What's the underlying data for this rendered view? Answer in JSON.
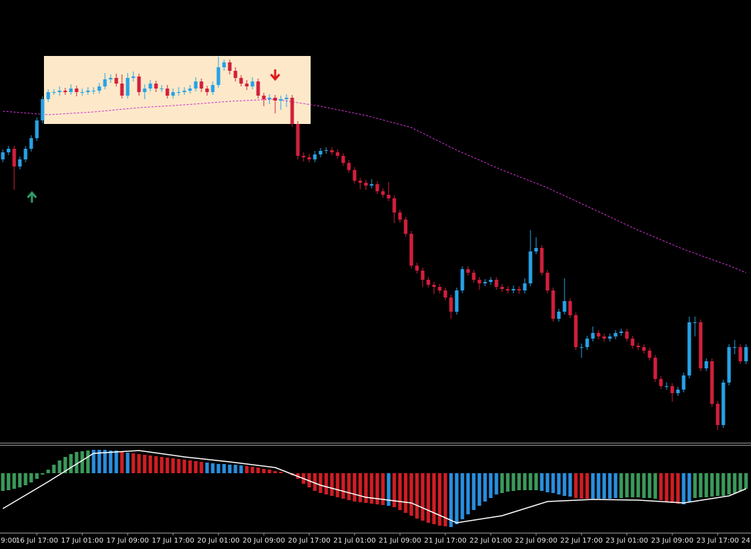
{
  "chart_data": [
    {
      "type": "candlestick",
      "up_color": "#27a2e6",
      "down_color": "#d21f3c",
      "ylim": [
        0,
        625
      ],
      "ohlc": [
        [
          400,
          414,
          396,
          410
        ],
        [
          410,
          419,
          406,
          415
        ],
        [
          415,
          419,
          357,
          390
        ],
        [
          390,
          404,
          386,
          400
        ],
        [
          400,
          419,
          396,
          415
        ],
        [
          415,
          434,
          411,
          430
        ],
        [
          430,
          459,
          426,
          455
        ],
        [
          455,
          489,
          451,
          485
        ],
        [
          485,
          499,
          481,
          495
        ],
        [
          495,
          499,
          491,
          495
        ],
        [
          495,
          503,
          490,
          497
        ],
        [
          497,
          501,
          491,
          495
        ],
        [
          495,
          506,
          491,
          500
        ],
        [
          500,
          504,
          489,
          495
        ],
        [
          495,
          500,
          490,
          495
        ],
        [
          495,
          502,
          491,
          497
        ],
        [
          497,
          502,
          492,
          497
        ],
        [
          497,
          508,
          493,
          503
        ],
        [
          503,
          522,
          499,
          513
        ],
        [
          513,
          520,
          508,
          515
        ],
        [
          515,
          521,
          503,
          507
        ],
        [
          507,
          520,
          486,
          490
        ],
        [
          490,
          522,
          486,
          515
        ],
        [
          515,
          524,
          510,
          517
        ],
        [
          517,
          521,
          490,
          495
        ],
        [
          495,
          506,
          485,
          500
        ],
        [
          500,
          512,
          496,
          507
        ],
        [
          507,
          511,
          495,
          500
        ],
        [
          500,
          505,
          495,
          500
        ],
        [
          500,
          505,
          486,
          490
        ],
        [
          490,
          500,
          486,
          495
        ],
        [
          495,
          502,
          490,
          495
        ],
        [
          495,
          502,
          491,
          497
        ],
        [
          497,
          505,
          493,
          500
        ],
        [
          500,
          516,
          496,
          510
        ],
        [
          510,
          514,
          495,
          500
        ],
        [
          500,
          504,
          490,
          495
        ],
        [
          495,
          510,
          491,
          505
        ],
        [
          505,
          545,
          501,
          530
        ],
        [
          530,
          541,
          525,
          537
        ],
        [
          537,
          541,
          520,
          525
        ],
        [
          525,
          530,
          510,
          515
        ],
        [
          515,
          519,
          503,
          507
        ],
        [
          507,
          512,
          498,
          503
        ],
        [
          503,
          516,
          499,
          510
        ],
        [
          510,
          514,
          486,
          490
        ],
        [
          490,
          494,
          475,
          485
        ],
        [
          485,
          492,
          478,
          487
        ],
        [
          487,
          491,
          465,
          483
        ],
        [
          483,
          490,
          470,
          485
        ],
        [
          485,
          492,
          474,
          487
        ],
        [
          487,
          491,
          446,
          450
        ],
        [
          450,
          454,
          400,
          405
        ],
        [
          405,
          410,
          397,
          403
        ],
        [
          403,
          408,
          396,
          400
        ],
        [
          400,
          412,
          396,
          407
        ],
        [
          407,
          416,
          403,
          412
        ],
        [
          412,
          417,
          408,
          413
        ],
        [
          413,
          417,
          406,
          410
        ],
        [
          410,
          414,
          401,
          405
        ],
        [
          405,
          409,
          391,
          395
        ],
        [
          395,
          399,
          381,
          385
        ],
        [
          385,
          389,
          366,
          370
        ],
        [
          370,
          374,
          358,
          367
        ],
        [
          367,
          371,
          357,
          363
        ],
        [
          363,
          372,
          359,
          365
        ],
        [
          365,
          369,
          351,
          355
        ],
        [
          355,
          359,
          346,
          350
        ],
        [
          350,
          368,
          341,
          345
        ],
        [
          345,
          349,
          310,
          325
        ],
        [
          325,
          329,
          311,
          315
        ],
        [
          315,
          319,
          291,
          295
        ],
        [
          295,
          299,
          246,
          250
        ],
        [
          250,
          254,
          239,
          243
        ],
        [
          243,
          247,
          220,
          230
        ],
        [
          230,
          234,
          219,
          223
        ],
        [
          223,
          227,
          210,
          220
        ],
        [
          220,
          224,
          211,
          215
        ],
        [
          215,
          219,
          201,
          205
        ],
        [
          205,
          209,
          175,
          185
        ],
        [
          185,
          219,
          181,
          215
        ],
        [
          215,
          249,
          211,
          245
        ],
        [
          245,
          249,
          236,
          240
        ],
        [
          240,
          244,
          226,
          230
        ],
        [
          230,
          234,
          216,
          225
        ],
        [
          225,
          231,
          221,
          227
        ],
        [
          227,
          234,
          223,
          230
        ],
        [
          230,
          234,
          216,
          220
        ],
        [
          220,
          224,
          213,
          217
        ],
        [
          217,
          221,
          211,
          215
        ],
        [
          215,
          222,
          211,
          217
        ],
        [
          217,
          221,
          210,
          215
        ],
        [
          215,
          232,
          211,
          225
        ],
        [
          225,
          300,
          221,
          270
        ],
        [
          270,
          290,
          266,
          275
        ],
        [
          275,
          279,
          236,
          240
        ],
        [
          240,
          244,
          211,
          215
        ],
        [
          215,
          219,
          171,
          175
        ],
        [
          175,
          189,
          171,
          185
        ],
        [
          185,
          232,
          181,
          200
        ],
        [
          200,
          204,
          176,
          180
        ],
        [
          180,
          184,
          131,
          135
        ],
        [
          135,
          140,
          120,
          135
        ],
        [
          135,
          151,
          131,
          147
        ],
        [
          147,
          164,
          143,
          155
        ],
        [
          155,
          159,
          146,
          150
        ],
        [
          150,
          154,
          143,
          147
        ],
        [
          147,
          154,
          143,
          150
        ],
        [
          150,
          159,
          146,
          155
        ],
        [
          155,
          161,
          151,
          157
        ],
        [
          157,
          161,
          143,
          147
        ],
        [
          147,
          151,
          133,
          137
        ],
        [
          137,
          141,
          131,
          135
        ],
        [
          135,
          139,
          126,
          130
        ],
        [
          130,
          134,
          116,
          120
        ],
        [
          120,
          124,
          86,
          90
        ],
        [
          90,
          94,
          76,
          80
        ],
        [
          80,
          85,
          75,
          80
        ],
        [
          80,
          84,
          58,
          70
        ],
        [
          70,
          79,
          66,
          75
        ],
        [
          75,
          99,
          71,
          95
        ],
        [
          95,
          178,
          91,
          170
        ],
        [
          170,
          178,
          150,
          170
        ],
        [
          170,
          174,
          101,
          105
        ],
        [
          105,
          119,
          101,
          115
        ],
        [
          115,
          119,
          51,
          55
        ],
        [
          55,
          59,
          18,
          25
        ],
        [
          25,
          89,
          21,
          85
        ],
        [
          85,
          139,
          81,
          135
        ],
        [
          135,
          145,
          125,
          135
        ],
        [
          135,
          139,
          111,
          115
        ],
        [
          115,
          139,
          111,
          135
        ]
      ],
      "ma": {
        "color": "#cc33cc",
        "x": [
          0,
          8,
          16,
          24,
          32,
          40,
          48,
          56,
          64,
          72,
          80,
          88,
          96,
          104,
          112,
          120,
          128,
          131
        ],
        "values": [
          468,
          463,
          467,
          473,
          477,
          482,
          485,
          475,
          462,
          445,
          413,
          385,
          360,
          330,
          300,
          273,
          250,
          240
        ]
      }
    },
    {
      "type": "oscillator",
      "ylim": [
        -84,
        38
      ],
      "values": [
        -25,
        -24,
        -22,
        -20,
        -17,
        -13,
        -8,
        -2,
        5,
        12,
        18,
        23,
        27,
        30,
        31,
        32,
        33,
        33,
        33,
        32,
        32,
        30,
        29,
        28,
        27,
        26,
        25,
        24,
        23,
        22,
        21,
        20,
        19,
        18,
        17,
        16,
        15,
        14,
        13,
        13,
        12,
        12,
        11,
        10,
        9,
        8,
        6,
        5,
        3,
        2,
        0,
        -3,
        -8,
        -15,
        -20,
        -25,
        -28,
        -30,
        -32,
        -34,
        -36,
        -38,
        -40,
        -41,
        -42,
        -43,
        -44,
        -45,
        -46,
        -48,
        -52,
        -56,
        -60,
        -64,
        -67,
        -70,
        -72,
        -74,
        -75,
        -76,
        -72,
        -65,
        -58,
        -52,
        -46,
        -40,
        -35,
        -30,
        -28,
        -26,
        -25,
        -24,
        -24,
        -24,
        -24,
        -25,
        -27,
        -28,
        -30,
        -32,
        -33,
        -35,
        -36,
        -36,
        -36,
        -36,
        -36,
        -36,
        -35,
        -35,
        -34,
        -34,
        -34,
        -35,
        -35,
        -36,
        -38,
        -40,
        -42,
        -43,
        -44,
        -40,
        -35,
        -34,
        -34,
        -33,
        -32,
        -32,
        -30,
        -28,
        -25,
        -22
      ],
      "colors": [
        "#3b9a5c",
        "#3b9a5c",
        "#3b9a5c",
        "#3b9a5c",
        "#3b9a5c",
        "#3b9a5c",
        "#3b9a5c",
        "#3b9a5c",
        "#3b9a5c",
        "#3b9a5c",
        "#3b9a5c",
        "#3b9a5c",
        "#3b9a5c",
        "#3b9a5c",
        "#3b9a5c",
        "#3b9a5c",
        "#2a8fe0",
        "#2a8fe0",
        "#2a8fe0",
        "#2a8fe0",
        "#2a8fe0",
        "#d01e24",
        "#2a8fe0",
        "#d01e24",
        "#d01e24",
        "#d01e24",
        "#d01e24",
        "#d01e24",
        "#d01e24",
        "#d01e24",
        "#d01e24",
        "#d01e24",
        "#d01e24",
        "#d01e24",
        "#d01e24",
        "#d01e24",
        "#2a8fe0",
        "#2a8fe0",
        "#2a8fe0",
        "#2a8fe0",
        "#2a8fe0",
        "#2a8fe0",
        "#2a8fe0",
        "#d01e24",
        "#d01e24",
        "#d01e24",
        "#d01e24",
        "#d01e24",
        "#d01e24",
        "#d01e24",
        "#d01e24",
        "#d01e24",
        "#d01e24",
        "#d01e24",
        "#d01e24",
        "#d01e24",
        "#d01e24",
        "#d01e24",
        "#d01e24",
        "#d01e24",
        "#d01e24",
        "#d01e24",
        "#d01e24",
        "#d01e24",
        "#d01e24",
        "#d01e24",
        "#d01e24",
        "#d01e24",
        "#2a8fe0",
        "#d01e24",
        "#d01e24",
        "#d01e24",
        "#d01e24",
        "#d01e24",
        "#d01e24",
        "#d01e24",
        "#d01e24",
        "#d01e24",
        "#d01e24",
        "#2a8fe0",
        "#2a8fe0",
        "#2a8fe0",
        "#2a8fe0",
        "#2a8fe0",
        "#2a8fe0",
        "#2a8fe0",
        "#2a8fe0",
        "#2a8fe0",
        "#3b9a5c",
        "#3b9a5c",
        "#3b9a5c",
        "#3b9a5c",
        "#3b9a5c",
        "#3b9a5c",
        "#3b9a5c",
        "#2a8fe0",
        "#2a8fe0",
        "#2a8fe0",
        "#2a8fe0",
        "#2a8fe0",
        "#2a8fe0",
        "#d01e24",
        "#d01e24",
        "#d01e24",
        "#2a8fe0",
        "#2a8fe0",
        "#2a8fe0",
        "#2a8fe0",
        "#2a8fe0",
        "#3b9a5c",
        "#3b9a5c",
        "#3b9a5c",
        "#3b9a5c",
        "#3b9a5c",
        "#3b9a5c",
        "#3b9a5c",
        "#d01e24",
        "#d01e24",
        "#d01e24",
        "#d01e24",
        "#2a8fe0",
        "#2a8fe0",
        "#3b9a5c",
        "#3b9a5c",
        "#3b9a5c",
        "#3b9a5c",
        "#3b9a5c",
        "#3b9a5c",
        "#3b9a5c",
        "#3b9a5c",
        "#3b9a5c",
        "#3b9a5c"
      ],
      "signal": {
        "color": "#ffffff",
        "x": [
          0,
          8,
          16,
          24,
          32,
          40,
          48,
          56,
          64,
          72,
          80,
          88,
          96,
          104,
          112,
          120,
          128,
          131
        ],
        "values": [
          -50,
          -12,
          28,
          32,
          23,
          16,
          8,
          -17,
          -34,
          -42,
          -70,
          -60,
          -40,
          -37,
          -38,
          -42,
          -32,
          -22
        ]
      },
      "xticks": [
        {
          "value": -1,
          "label": "9:00"
        },
        {
          "value": 6,
          "label": "16 Jul 17:00"
        },
        {
          "value": 14,
          "label": "17 Jul 01:00"
        },
        {
          "value": 22,
          "label": "17 Jul 09:00"
        },
        {
          "value": 30,
          "label": "17 Jul 17:00"
        },
        {
          "value": 38,
          "label": "20 Jul 01:00"
        },
        {
          "value": 46,
          "label": "20 Jul 09:00"
        },
        {
          "value": 54,
          "label": "20 Jul 17:00"
        },
        {
          "value": 62,
          "label": "21 Jul 01:00"
        },
        {
          "value": 70,
          "label": "21 Jul 09:00"
        },
        {
          "value": 78,
          "label": "21 Jul 17:00"
        },
        {
          "value": 86,
          "label": "22 Jul 01:00"
        },
        {
          "value": 94,
          "label": "22 Jul 09:00"
        },
        {
          "value": 102,
          "label": "22 Jul 17:00"
        },
        {
          "value": 110,
          "label": "23 Jul 01:00"
        },
        {
          "value": 118,
          "label": "23 Jul 09:00"
        },
        {
          "value": 126,
          "label": "23 Jul 17:00"
        },
        {
          "value": 134,
          "label": "24"
        }
      ]
    }
  ]
}
